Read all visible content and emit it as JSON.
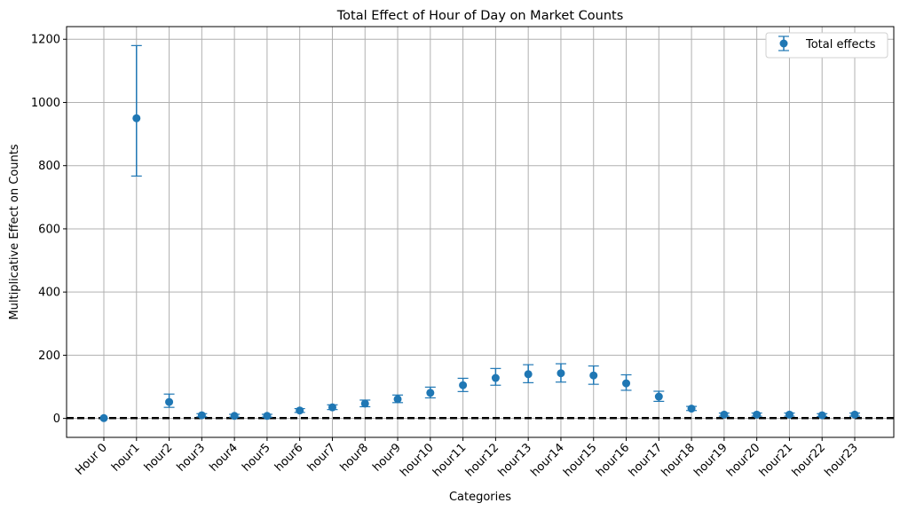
{
  "chart_data": {
    "type": "scatter",
    "title": "Total Effect of Hour of Day on Market Counts",
    "xlabel": "Categories",
    "ylabel": "Multiplicative Effect on Counts",
    "categories": [
      "Hour 0",
      "hour1",
      "hour2",
      "hour3",
      "hour4",
      "hour5",
      "hour6",
      "hour7",
      "hour8",
      "hour9",
      "hour10",
      "hour11",
      "hour12",
      "hour13",
      "hour14",
      "hour15",
      "hour16",
      "hour17",
      "hour18",
      "hour19",
      "hour20",
      "hour21",
      "hour22",
      "hour23"
    ],
    "yticks": [
      0,
      200,
      400,
      600,
      800,
      1000,
      1200
    ],
    "ylim": [
      -60,
      1240
    ],
    "grid": true,
    "legend_position": "top-right",
    "reference_line": {
      "y": 1,
      "style": "dashed",
      "color": "#000000"
    },
    "series": [
      {
        "name": "Total effects",
        "color": "#1f77b4",
        "values": [
          1,
          950,
          52,
          10,
          8,
          8,
          25,
          35,
          47,
          61,
          81,
          105,
          128,
          140,
          143,
          136,
          111,
          69,
          31,
          12,
          12,
          12,
          10,
          12
        ],
        "lower": [
          1,
          767,
          35,
          5,
          4,
          4,
          19,
          28,
          37,
          50,
          65,
          85,
          105,
          113,
          115,
          108,
          89,
          54,
          25,
          7,
          7,
          7,
          6,
          7
        ],
        "upper": [
          1,
          1180,
          77,
          15,
          13,
          13,
          31,
          43,
          58,
          74,
          99,
          127,
          158,
          170,
          173,
          166,
          138,
          86,
          38,
          17,
          17,
          17,
          15,
          17
        ]
      }
    ]
  }
}
